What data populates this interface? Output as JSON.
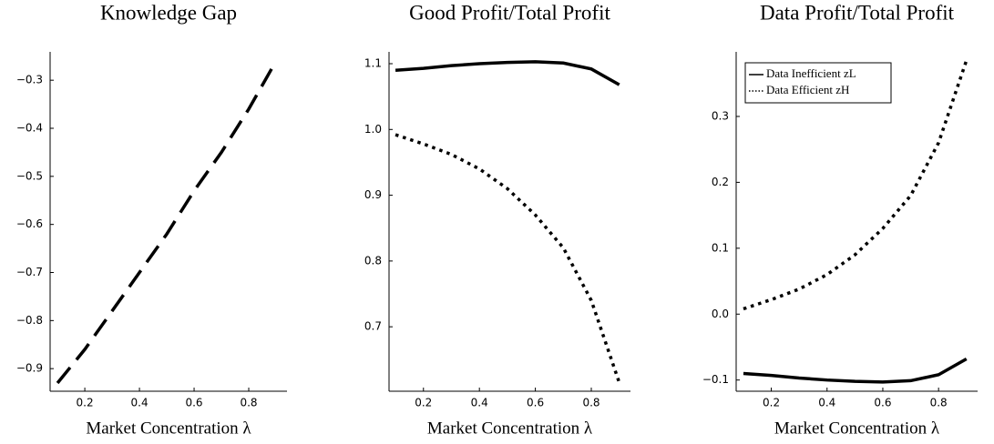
{
  "chart_data": [
    {
      "type": "line",
      "title": "Knowledge Gap",
      "xlabel": "Market Concentration λ",
      "x": [
        0.1,
        0.2,
        0.3,
        0.4,
        0.5,
        0.6,
        0.7,
        0.8,
        0.9
      ],
      "series": [
        {
          "color": "#000000",
          "style": "dashed",
          "values": [
            -0.93,
            -0.86,
            -0.78,
            -0.7,
            -0.62,
            -0.53,
            -0.45,
            -0.36,
            -0.26
          ]
        }
      ],
      "xlim": [
        0.073,
        0.94
      ],
      "xticks": [
        0.2,
        0.4,
        0.6,
        0.8
      ],
      "ylim": [
        -0.947,
        -0.241
      ],
      "yticks": [
        {
          "value": -0.9,
          "label": "−0.9"
        },
        {
          "value": -0.8,
          "label": "−0.8"
        },
        {
          "value": -0.7,
          "label": "−0.7"
        },
        {
          "value": -0.6,
          "label": "−0.6"
        },
        {
          "value": -0.5,
          "label": "−0.5"
        },
        {
          "value": -0.4,
          "label": "−0.4"
        },
        {
          "value": -0.3,
          "label": "−0.3"
        }
      ],
      "grid": false
    },
    {
      "type": "line",
      "title": "Good Profit/Total Profit",
      "xlabel": "Market Concentration λ",
      "x": [
        0.1,
        0.2,
        0.3,
        0.4,
        0.5,
        0.6,
        0.7,
        0.8,
        0.9
      ],
      "series": [
        {
          "color": "#000000",
          "style": "solid",
          "values": [
            1.09,
            1.093,
            1.097,
            1.1,
            1.102,
            1.103,
            1.101,
            1.092,
            1.068
          ]
        },
        {
          "color": "#000000",
          "style": "dotted",
          "values": [
            0.992,
            0.978,
            0.962,
            0.94,
            0.91,
            0.87,
            0.82,
            0.74,
            0.615
          ]
        }
      ],
      "xlim": [
        0.077,
        0.94
      ],
      "xticks": [
        0.2,
        0.4,
        0.6,
        0.8
      ],
      "ylim": [
        0.602,
        1.118
      ],
      "yticks": [
        0.7,
        0.8,
        0.9,
        {
          "value": 1,
          "label": "1.0"
        },
        1.1
      ],
      "grid": false
    },
    {
      "type": "line",
      "title": "Data Profit/Total Profit",
      "xlabel": "Market Concentration λ",
      "x": [
        0.1,
        0.2,
        0.3,
        0.4,
        0.5,
        0.6,
        0.7,
        0.8,
        0.9
      ],
      "series": [
        {
          "name": "Data Inefficient zL",
          "color": "#000000",
          "style": "solid",
          "values": [
            -0.09,
            -0.093,
            -0.097,
            -0.1,
            -0.102,
            -0.103,
            -0.101,
            -0.092,
            -0.068
          ]
        },
        {
          "name": "Data Efficient zH",
          "color": "#000000",
          "style": "dotted",
          "values": [
            0.008,
            0.022,
            0.038,
            0.06,
            0.09,
            0.13,
            0.18,
            0.26,
            0.385
          ]
        }
      ],
      "xlim": [
        0.074,
        0.94
      ],
      "xticks": [
        0.2,
        0.4,
        0.6,
        0.8
      ],
      "ylim": [
        -0.117,
        0.398
      ],
      "yticks": [
        {
          "value": -0.1,
          "label": "−0.1"
        },
        {
          "value": 0,
          "label": "0.0"
        },
        0.1,
        0.2,
        0.3
      ],
      "legend": "top-left",
      "grid": false
    }
  ]
}
